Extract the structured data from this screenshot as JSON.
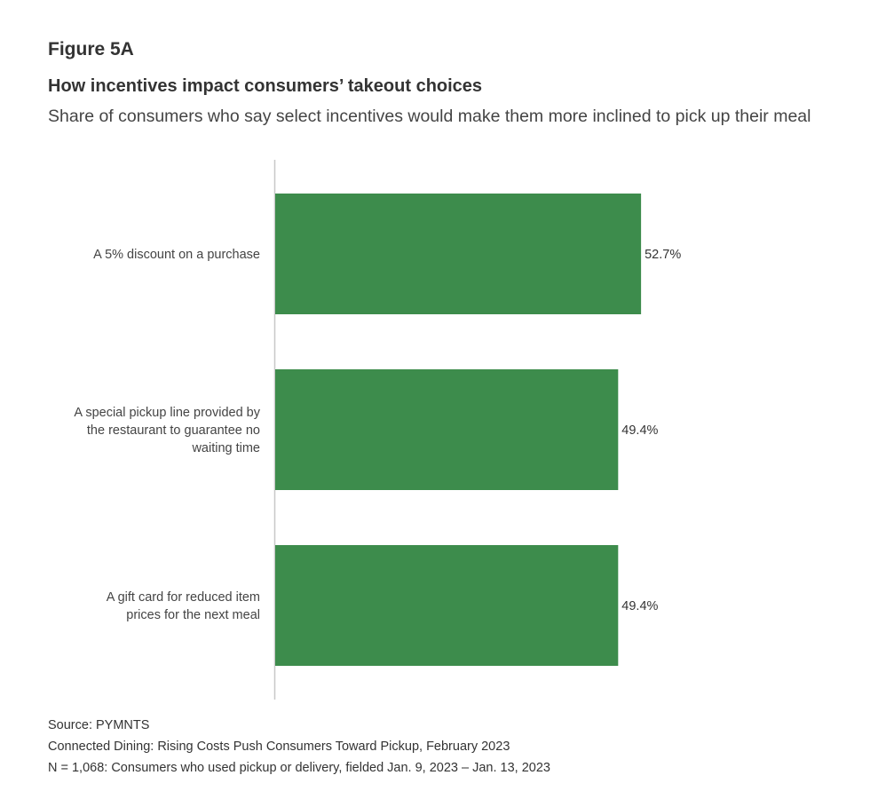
{
  "figure_label": "Figure 5A",
  "chart_data": {
    "type": "bar",
    "orientation": "horizontal",
    "title": "How incentives impact consumers’ takeout choices",
    "subtitle": "Share of consumers who say select incentives would make them more inclined to pick up their meal",
    "categories": [
      [
        "A 5% discount on a purchase"
      ],
      [
        "A special pickup line provided by",
        "the restaurant to guarantee no",
        "waiting time"
      ],
      [
        "A gift card for reduced item",
        "prices for the next meal"
      ]
    ],
    "values": [
      52.7,
      49.4,
      49.4
    ],
    "data_labels": [
      "52.7%",
      "49.4%",
      "49.4%"
    ],
    "unit": "%",
    "xlim": [
      0,
      100
    ],
    "grid": false,
    "bar_color": "#3d8c4c",
    "axis_color": "#c8c8c8"
  },
  "footer": {
    "source": "Source: PYMNTS",
    "report": "Connected Dining: Rising Costs Push Consumers Toward Pickup, February 2023",
    "sample": "N = 1,068: Consumers who used pickup or delivery, fielded Jan. 9, 2023 – Jan. 13, 2023"
  }
}
